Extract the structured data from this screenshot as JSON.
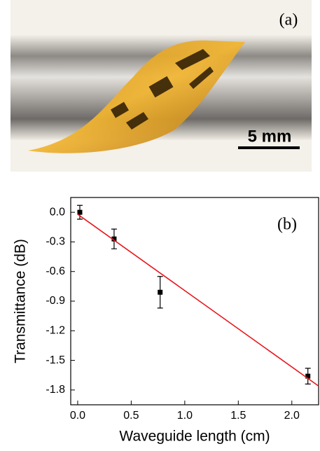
{
  "photo": {
    "label": "(a)",
    "scale_bar": "5 mm"
  },
  "chart_data": {
    "type": "scatter",
    "annotation": "(b)",
    "xlabel": "Waveguide length (cm)",
    "ylabel": "Transmittance (dB)",
    "xlim": [
      -0.065,
      2.25
    ],
    "ylim": [
      -1.95,
      0.15
    ],
    "xticks": [
      {
        "value": 0,
        "label": "0.0"
      },
      0.5,
      {
        "value": 1,
        "label": "1.0"
      },
      1.5,
      {
        "value": 2,
        "label": "2.0"
      }
    ],
    "yticks": [
      {
        "value": 0,
        "label": "0.0"
      },
      -0.3,
      -0.6,
      -0.9,
      -1.2,
      -1.5,
      -1.8
    ],
    "series": [
      {
        "color": "#000000",
        "x": [
          0.02,
          0.34,
          0.77,
          2.15
        ],
        "values": [
          0.0,
          -0.27,
          -0.81,
          -1.66
        ],
        "errors": [
          0.07,
          0.1,
          0.16,
          0.08
        ]
      },
      {
        "color": "#e8141b",
        "style": "line",
        "x": [
          0,
          2.25
        ],
        "values": [
          -0.02,
          -1.76
        ]
      }
    ]
  }
}
